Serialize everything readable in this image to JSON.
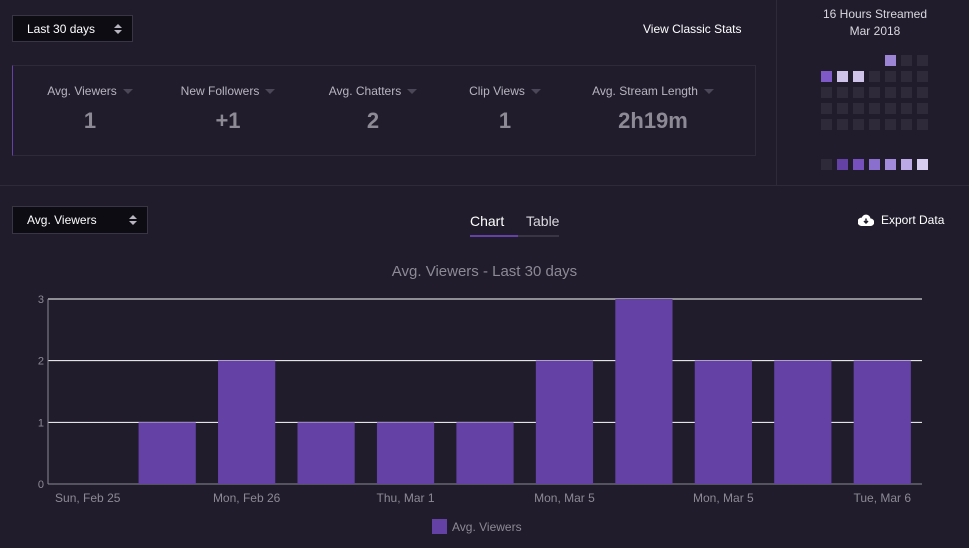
{
  "range_select": {
    "label": "Last 30 days"
  },
  "classic_link": "View Classic Stats",
  "stats": [
    {
      "label": "Avg. Viewers",
      "value": "1"
    },
    {
      "label": "New Followers",
      "value": "+1"
    },
    {
      "label": "Avg. Chatters",
      "value": "2"
    },
    {
      "label": "Clip Views",
      "value": "1"
    },
    {
      "label": "Avg. Stream Length",
      "value": "2h19m"
    }
  ],
  "calendar": {
    "line1": "16 Hours Streamed",
    "line2": "Mar 2018"
  },
  "metric_select": {
    "label": "Avg. Viewers"
  },
  "view_tabs": {
    "chart": "Chart",
    "table": "Table"
  },
  "export_label": "Export Data",
  "colors": {
    "accent": "#6441a4",
    "background": "#201c2b"
  },
  "chart_data": {
    "type": "bar",
    "title": "Avg. Viewers - Last 30 days",
    "categories": [
      "Sun, Feb 25",
      "",
      "Mon, Feb 26",
      "",
      "Thu, Mar 1",
      "",
      "Mon, Mar 5",
      "",
      "Mon, Mar 5",
      "",
      "Tue, Mar 6"
    ],
    "series": [
      {
        "name": "Avg. Viewers",
        "values": [
          0,
          1,
          2,
          1,
          1,
          1,
          2,
          3,
          2,
          2,
          2
        ]
      }
    ],
    "ylim": [
      0,
      3
    ],
    "yticks": [
      "0",
      "1",
      "2",
      "3"
    ],
    "xtick_labels": [
      "Sun, Feb 25",
      "Mon, Feb 26",
      "Thu, Mar 1",
      "Mon, Mar 5",
      "Mon, Mar 5",
      "Tue, Mar 6"
    ],
    "grid": true,
    "legend": "bottom"
  }
}
